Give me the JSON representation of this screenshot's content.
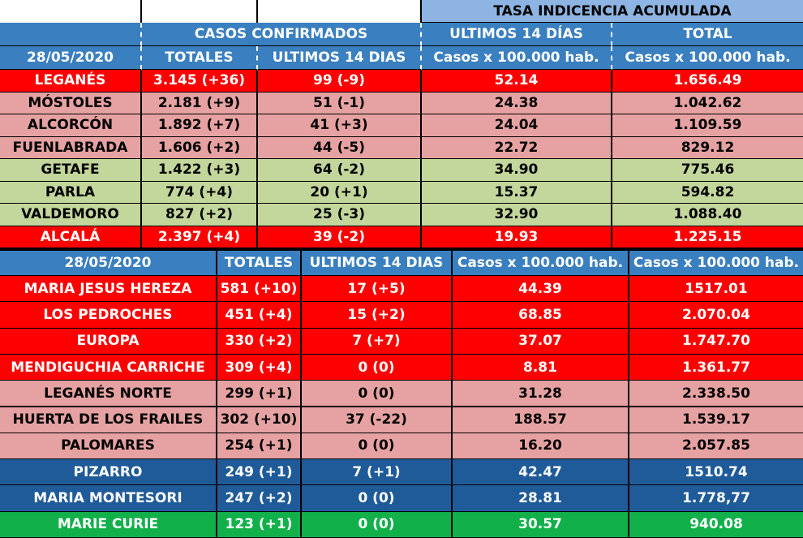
{
  "top": {
    "tasa_header": "TASA INDICENCIA  ACUMULADA",
    "casos_header": "CASOS  CONFIRMADOS",
    "ultimos_header": "ULTIMOS 14 DÍAS",
    "total_header": "TOTAL",
    "date": "28/05/2020",
    "col_totales": "TOTALES",
    "col_ultimos": "ULTIMOS 14 DIAS",
    "col_casos1": "Casos x 100.000 hab.",
    "col_casos2": "Casos x 100.000 hab.",
    "rows": [
      {
        "name": "LEGANÉS",
        "tot": "3.145 (+36)",
        "ult": "99 (-9)",
        "c14": "52.14",
        "ctot": "1.656.49",
        "color": "red"
      },
      {
        "name": "MÓSTOLES",
        "tot": "2.181 (+9)",
        "ult": "51 (-1)",
        "c14": "24.38",
        "ctot": "1.042.62",
        "color": "pink"
      },
      {
        "name": "ALCORCÓN",
        "tot": "1.892 (+7)",
        "ult": "41 (+3)",
        "c14": "24.04",
        "ctot": "1.109.59",
        "color": "pink"
      },
      {
        "name": "FUENLABRADA",
        "tot": "1.606 (+2)",
        "ult": "44 (-5)",
        "c14": "22.72",
        "ctot": "829.12",
        "color": "pink"
      },
      {
        "name": "GETAFE",
        "tot": "1.422 (+3)",
        "ult": "64 (-2)",
        "c14": "34.90",
        "ctot": "775.46",
        "color": "green"
      },
      {
        "name": "PARLA",
        "tot": "774 (+4)",
        "ult": "20 (+1)",
        "c14": "15.37",
        "ctot": "594.82",
        "color": "green"
      },
      {
        "name": "VALDEMORO",
        "tot": "827 (+2)",
        "ult": "25 (-3)",
        "c14": "32.90",
        "ctot": "1.088.40",
        "color": "green"
      },
      {
        "name": "ALCALÁ",
        "tot": "2.397 (+4)",
        "ult": "39 (-2)",
        "c14": "19.93",
        "ctot": "1.225.15",
        "color": "red"
      }
    ]
  },
  "bottom": {
    "date": "28/05/2020",
    "col_totales": "TOTALES",
    "col_ultimos": "ULTIMOS 14 DIAS",
    "col_casos1": "Casos x 100.000 hab.",
    "col_casos2": "Casos x 100.000 hab.",
    "rows": [
      {
        "name": "MARIA JESUS HEREZA",
        "tot": "581 (+10)",
        "ult": "17 (+5)",
        "c14": "44.39",
        "ctot": "1517.01",
        "color": "red"
      },
      {
        "name": "LOS PEDROCHES",
        "tot": "451 (+4)",
        "ult": "15 (+2)",
        "c14": "68.85",
        "ctot": "2.070.04",
        "color": "red"
      },
      {
        "name": "EUROPA",
        "tot": "330 (+2)",
        "ult": "7 (+7)",
        "c14": "37.07",
        "ctot": "1.747.70",
        "color": "red"
      },
      {
        "name": "MENDIGUCHIA CARRICHE",
        "tot": "309 (+4)",
        "ult": "0 (0)",
        "c14": "8.81",
        "ctot": "1.361.77",
        "color": "red"
      },
      {
        "name": "LEGANÉS NORTE",
        "tot": "299 (+1)",
        "ult": "0 (0)",
        "c14": "31.28",
        "ctot": "2.338.50",
        "color": "pink"
      },
      {
        "name": "HUERTA DE LOS FRAILES",
        "tot": "302 (+10)",
        "ult": "37 (-22)",
        "c14": "188.57",
        "ctot": "1.539.17",
        "color": "pink"
      },
      {
        "name": "PALOMARES",
        "tot": "254 (+1)",
        "ult": "0 (0)",
        "c14": "16.20",
        "ctot": "2.057.85",
        "color": "pink"
      },
      {
        "name": "PIZARRO",
        "tot": "249 (+1)",
        "ult": "7 (+1)",
        "c14": "42.47",
        "ctot": "1510.74",
        "color": "blue"
      },
      {
        "name": "MARIA MONTESORI",
        "tot": "247 (+2)",
        "ult": "0 (0)",
        "c14": "28.81",
        "ctot": "1.778,77",
        "color": "blue"
      },
      {
        "name": "MARIE CURIE",
        "tot": "123 (+1)",
        "ult": "0 (0)",
        "c14": "30.57",
        "ctot": "940.08",
        "color": "brightgreen"
      }
    ]
  }
}
